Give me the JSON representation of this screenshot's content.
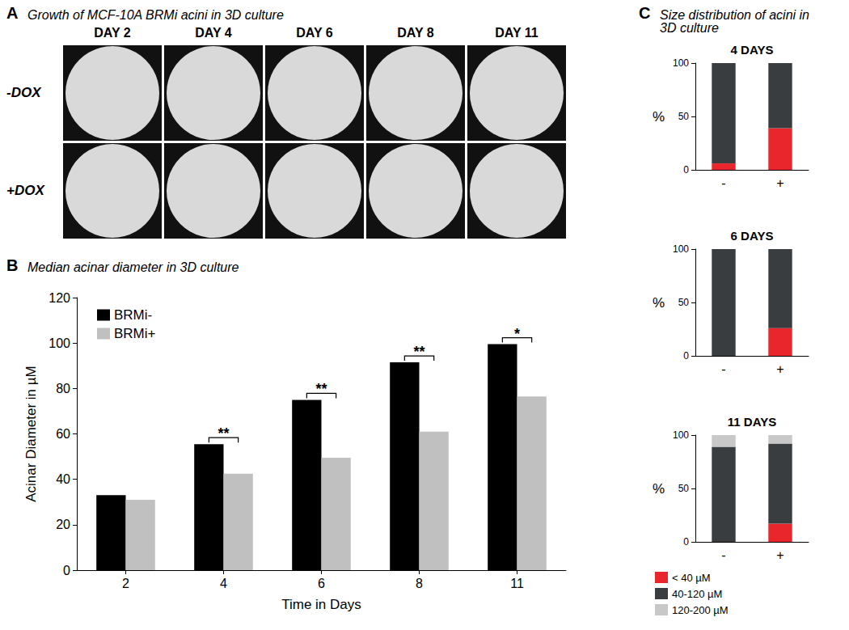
{
  "image_panel": {
    "panel": "A",
    "title": "Growth of MCF-10A BRMi acini in 3D culture",
    "columns": [
      "DAY 2",
      "DAY 4",
      "DAY 6",
      "DAY 8",
      "DAY 11"
    ],
    "rows": [
      "-DOX",
      "+DOX"
    ]
  },
  "chart_data": [
    {
      "panel": "B",
      "title": "Median acinar diameter in 3D culture",
      "type": "bar",
      "categories": [
        "2",
        "4",
        "6",
        "8",
        "11"
      ],
      "series": [
        {
          "name": "BRMi-",
          "color": "#000000",
          "values": [
            33,
            55.5,
            75,
            91.5,
            99.5
          ]
        },
        {
          "name": "BRMi+",
          "color": "#c0c0c0",
          "values": [
            31,
            42.5,
            49.5,
            61,
            76.5
          ]
        }
      ],
      "ylim": [
        0,
        120
      ],
      "yticks": [
        0,
        20,
        40,
        60,
        80,
        100,
        120
      ],
      "xlabel": "Time in Days",
      "ylabel": "Acinar Diameter in µM",
      "legend": "top-left",
      "grid": false,
      "annotations": [
        {
          "category": "4",
          "label": "**"
        },
        {
          "category": "6",
          "label": "**"
        },
        {
          "category": "8",
          "label": "**"
        },
        {
          "category": "11",
          "label": "*"
        }
      ]
    },
    {
      "panel": "C",
      "panel_title": "Size distribution of acini in 3D culture",
      "title": "4 DAYS",
      "type": "bar",
      "stacked": true,
      "categories": [
        "-",
        "+"
      ],
      "series": [
        {
          "name": "< 40 µM",
          "color": "#e8262b",
          "values": [
            6,
            39
          ]
        },
        {
          "name": "40-120 µM",
          "color": "#3a3d3f",
          "values": [
            94,
            61
          ]
        },
        {
          "name": "120-200 µM",
          "color": "#c8c8c8",
          "values": [
            0,
            0
          ]
        }
      ],
      "ylim": [
        0,
        100
      ],
      "yticks": [
        0,
        50,
        100
      ],
      "ylabel": "%",
      "grid": false
    },
    {
      "title": "6 DAYS",
      "type": "bar",
      "stacked": true,
      "categories": [
        "-",
        "+"
      ],
      "series": [
        {
          "name": "< 40 µM",
          "color": "#e8262b",
          "values": [
            0,
            26
          ]
        },
        {
          "name": "40-120 µM",
          "color": "#3a3d3f",
          "values": [
            100,
            74
          ]
        },
        {
          "name": "120-200 µM",
          "color": "#c8c8c8",
          "values": [
            0,
            0
          ]
        }
      ],
      "ylim": [
        0,
        100
      ],
      "yticks": [
        0,
        50,
        100
      ],
      "ylabel": "%",
      "grid": false
    },
    {
      "title": "11 DAYS",
      "type": "bar",
      "stacked": true,
      "categories": [
        "-",
        "+"
      ],
      "series": [
        {
          "name": "< 40 µM",
          "color": "#e8262b",
          "values": [
            0,
            17
          ]
        },
        {
          "name": "40-120 µM",
          "color": "#3a3d3f",
          "values": [
            89,
            75
          ]
        },
        {
          "name": "120-200 µM",
          "color": "#c8c8c8",
          "values": [
            11,
            8
          ]
        }
      ],
      "ylim": [
        0,
        100
      ],
      "yticks": [
        0,
        50,
        100
      ],
      "ylabel": "%",
      "legend": "bottom",
      "grid": false
    }
  ]
}
